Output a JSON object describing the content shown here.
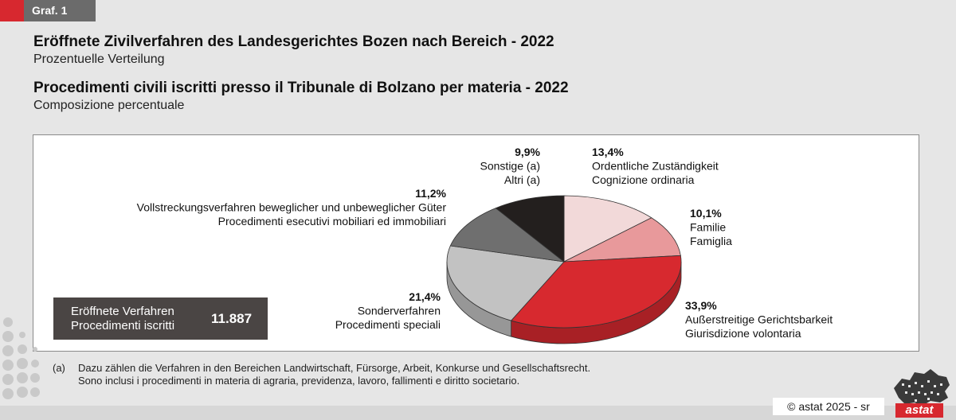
{
  "graf_label": "Graf. 1",
  "titles": {
    "de_title": "Eröffnete Zivilverfahren des Landesgerichtes Bozen nach Bereich - 2022",
    "de_subtitle": "Prozentuelle Verteilung",
    "it_title": "Procedimenti civili iscritti presso il Tribunale di Bolzano per materia - 2022",
    "it_subtitle": "Composizione percentuale"
  },
  "total": {
    "label_de": "Eröffnete Verfahren",
    "label_it": "Procedimenti iscritti",
    "value": "11.887"
  },
  "chart_data": {
    "type": "pie",
    "title": "Eröffnete Zivilverfahren des Landesgerichtes Bozen nach Bereich - 2022",
    "unit": "%",
    "slices": [
      {
        "pct": "13,4%",
        "label_de": "Ordentliche Zuständigkeit",
        "label_it": "Cognizione ordinaria",
        "value": 13.4,
        "color": "#f2d9d9"
      },
      {
        "pct": "10,1%",
        "label_de": "Familie",
        "label_it": "Famiglia",
        "value": 10.1,
        "color": "#e8999b"
      },
      {
        "pct": "33,9%",
        "label_de": "Außerstreitige Gerichtsbarkeit",
        "label_it": "Giurisdizione volontaria",
        "value": 33.9,
        "color": "#d7292f"
      },
      {
        "pct": "21,4%",
        "label_de": "Sonderverfahren",
        "label_it": "Procedimenti speciali",
        "value": 21.4,
        "color": "#c2c2c2"
      },
      {
        "pct": "11,2%",
        "label_de": "Vollstreckungsverfahren beweglicher und unbeweglicher Güter",
        "label_it": "Procedimenti esecutivi mobiliari ed immobiliari",
        "value": 11.2,
        "color": "#6f6f6f"
      },
      {
        "pct": "9,9%",
        "label_de": "Sonstige (a)",
        "label_it": "Altri (a)",
        "value": 9.9,
        "color": "#231f1e"
      }
    ]
  },
  "footnote": {
    "marker": "(a)",
    "line1": "Dazu zählen die Verfahren in den Bereichen Landwirtschaft, Fürsorge, Arbeit, Konkurse und Gesellschaftsrecht.",
    "line2": "Sono inclusi i procedimenti in materia di agraria, previdenza, lavoro, fallimenti e diritto societario."
  },
  "copyright": "©  astat 2025 - sr",
  "logo_text": "astat"
}
